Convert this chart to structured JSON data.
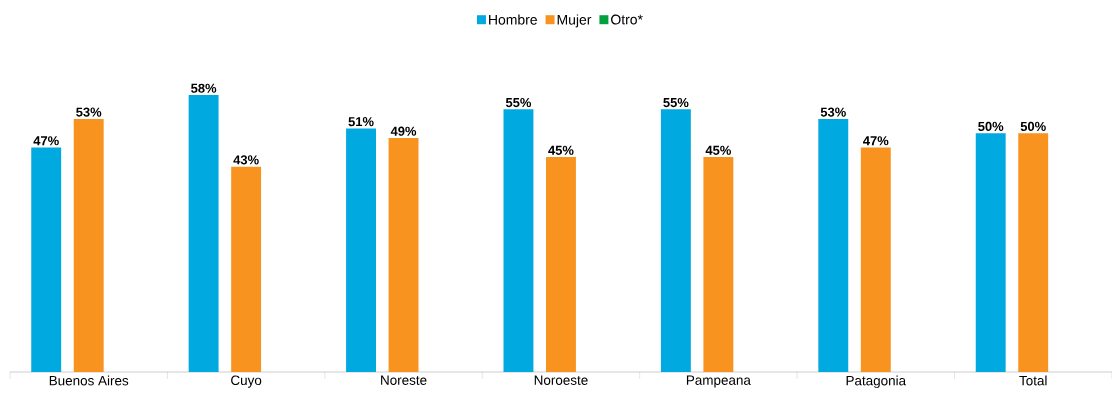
{
  "chart_data": {
    "type": "bar",
    "ylim": [
      0,
      58
    ],
    "categories": [
      "Buenos Aires",
      "Cuyo",
      "Noreste",
      "Noroeste",
      "Pampeana",
      "Patagonia",
      "Total"
    ],
    "legend": "top",
    "grid": false,
    "tick_labels": "x",
    "series": [
      {
        "name": "Hombre",
        "color": "#00a9e0",
        "values": [
          47,
          58,
          51,
          55,
          55,
          53,
          50
        ],
        "value_labels": [
          "47%",
          "58%",
          "51%",
          "55%",
          "55%",
          "53%",
          "50%"
        ]
      },
      {
        "name": "Mujer",
        "color": "#f7931e",
        "values": [
          53,
          43,
          49,
          45,
          45,
          47,
          50
        ],
        "value_labels": [
          "53%",
          "43%",
          "49%",
          "45%",
          "45%",
          "47%",
          "50%"
        ]
      },
      {
        "name": "Otro*",
        "color": "#00a03e",
        "values": [
          null,
          null,
          null,
          null,
          null,
          null,
          null
        ],
        "value_labels": [
          null,
          null,
          null,
          null,
          null,
          null,
          null
        ]
      }
    ]
  }
}
